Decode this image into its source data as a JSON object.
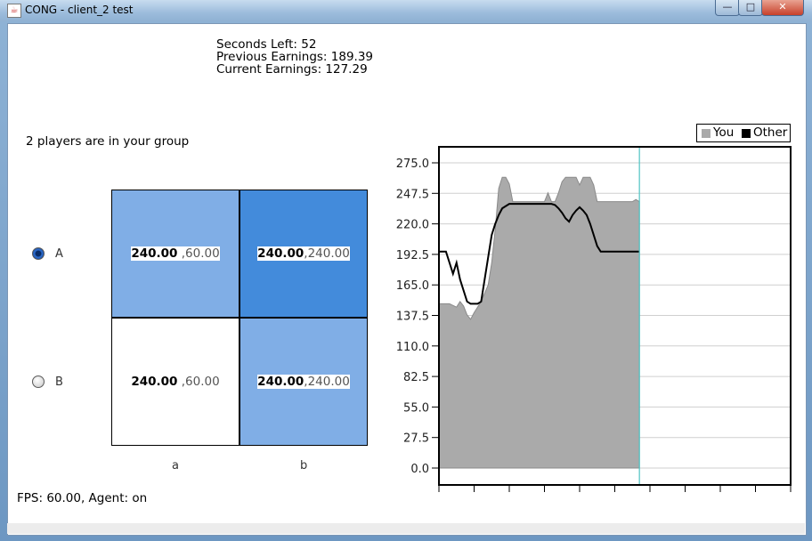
{
  "window": {
    "title": "CONG - client_2 test",
    "icon": "java-cup-icon",
    "controls": {
      "minimize": "—",
      "maximize": "□",
      "close": "✕"
    }
  },
  "stats": {
    "seconds_left": "Seconds Left: 52",
    "previous_earnings": "Previous Earnings: 189.39",
    "current_earnings": "Current Earnings: 127.29"
  },
  "group_text": "2 players are in your group",
  "rows": [
    {
      "label": "A",
      "selected": true
    },
    {
      "label": "B",
      "selected": false
    }
  ],
  "columns": [
    "a",
    "b"
  ],
  "matrix": [
    [
      {
        "own": "240.00",
        "other": " ,60.00",
        "color": "#80aee6"
      },
      {
        "own": "240.00",
        "other": ",240.00",
        "color": "#438bdb"
      }
    ],
    [
      {
        "own": "240.00",
        "other": " ,60.00",
        "color": "#ffffff"
      },
      {
        "own": "240.00",
        "other": ",240.00",
        "color": "#80aee6"
      }
    ]
  ],
  "fps_text": "FPS: 60.00, Agent: on",
  "chart_data": {
    "type": "area",
    "title": "",
    "xlabel": "",
    "ylabel": "",
    "ylim": [
      0,
      275
    ],
    "xlim": [
      0,
      1
    ],
    "yticks": [
      "0.0",
      "27.5",
      "55.0",
      "82.5",
      "110.0",
      "137.5",
      "165.0",
      "192.5",
      "220.0",
      "247.5",
      "275.0"
    ],
    "x_tick_count": 10,
    "legend": "top-right",
    "current_time_marker": 0.57,
    "series": [
      {
        "name": "You",
        "kind": "area",
        "color": "#aaaaaa",
        "x": [
          0.0,
          0.03,
          0.05,
          0.06,
          0.07,
          0.08,
          0.09,
          0.1,
          0.11,
          0.12,
          0.14,
          0.15,
          0.16,
          0.17,
          0.18,
          0.19,
          0.2,
          0.21,
          0.22,
          0.23,
          0.24,
          0.25,
          0.26,
          0.27,
          0.28,
          0.29,
          0.3,
          0.31,
          0.32,
          0.33,
          0.34,
          0.35,
          0.36,
          0.37,
          0.38,
          0.39,
          0.4,
          0.41,
          0.42,
          0.43,
          0.44,
          0.45,
          0.46,
          0.47,
          0.48,
          0.49,
          0.5,
          0.51,
          0.52,
          0.53,
          0.54,
          0.55,
          0.56,
          0.57
        ],
        "y": [
          148,
          148,
          145,
          150,
          146,
          138,
          134,
          140,
          145,
          150,
          165,
          185,
          215,
          252,
          262,
          262,
          256,
          240,
          240,
          240,
          240,
          240,
          240,
          240,
          240,
          240,
          240,
          248,
          240,
          240,
          248,
          258,
          262,
          262,
          262,
          262,
          255,
          262,
          262,
          262,
          255,
          240,
          240,
          240,
          240,
          240,
          240,
          240,
          240,
          240,
          240,
          240,
          242,
          240
        ]
      },
      {
        "name": "Other",
        "kind": "line",
        "color": "#000000",
        "x": [
          0.0,
          0.02,
          0.03,
          0.04,
          0.05,
          0.06,
          0.07,
          0.08,
          0.09,
          0.1,
          0.11,
          0.12,
          0.13,
          0.14,
          0.15,
          0.16,
          0.17,
          0.18,
          0.2,
          0.22,
          0.24,
          0.26,
          0.28,
          0.3,
          0.32,
          0.33,
          0.34,
          0.35,
          0.36,
          0.37,
          0.38,
          0.39,
          0.4,
          0.41,
          0.42,
          0.43,
          0.44,
          0.45,
          0.46,
          0.47,
          0.48,
          0.5,
          0.52,
          0.54,
          0.56,
          0.57
        ],
        "y": [
          195,
          195,
          185,
          175,
          185,
          170,
          160,
          150,
          148,
          148,
          148,
          150,
          170,
          190,
          210,
          220,
          228,
          234,
          238,
          238,
          238,
          238,
          238,
          238,
          238,
          237,
          234,
          230,
          225,
          222,
          228,
          232,
          235,
          232,
          228,
          220,
          210,
          200,
          195,
          195,
          195,
          195,
          195,
          195,
          195,
          195
        ]
      }
    ]
  }
}
